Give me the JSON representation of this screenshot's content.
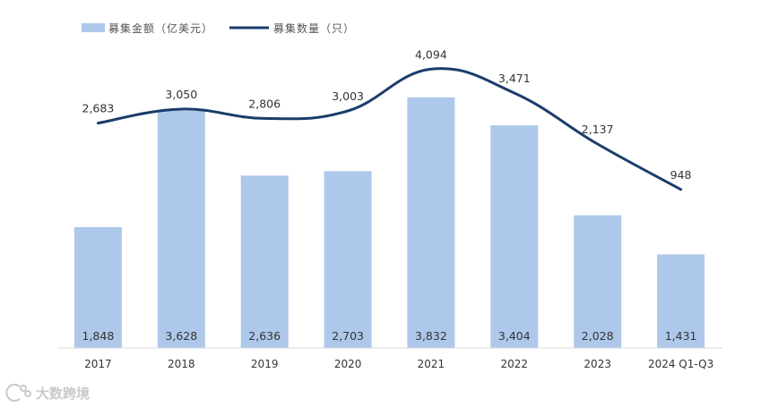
{
  "chart_data": {
    "type": "bar+line",
    "categories": [
      "2017",
      "2018",
      "2019",
      "2020",
      "2021",
      "2022",
      "2023",
      "2024 Q1-Q3"
    ],
    "series": [
      {
        "name": "募集金额（亿美元）",
        "type": "bar",
        "color": "#adc8ea",
        "values": [
          1848,
          3628,
          2636,
          2703,
          3832,
          3404,
          2028,
          1431
        ]
      },
      {
        "name": "募集数量（只）",
        "type": "line",
        "color": "#1a3d6b",
        "values": [
          2683,
          3050,
          2806,
          3003,
          4094,
          3471,
          2137,
          948
        ]
      }
    ],
    "bar_labels": [
      "1,848",
      "3,628",
      "2,636",
      "2,703",
      "3,832",
      "3,404",
      "2,028",
      "1,431"
    ],
    "line_labels": [
      "2,683",
      "3,050",
      "2,806",
      "3,003",
      "4,094",
      "3,471",
      "2,137",
      "948"
    ],
    "bar_axis_range": [
      0,
      4500
    ],
    "line_axis_range": [
      -3200,
      4500
    ],
    "grid": false,
    "legend_position": "top-left"
  },
  "watermark": {
    "logo_text": "大数跨境"
  }
}
